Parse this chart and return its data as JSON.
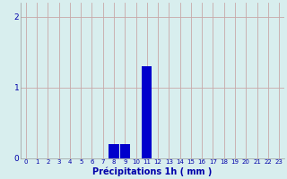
{
  "hours": [
    0,
    1,
    2,
    3,
    4,
    5,
    6,
    7,
    8,
    9,
    10,
    11,
    12,
    13,
    14,
    15,
    16,
    17,
    18,
    19,
    20,
    21,
    22,
    23
  ],
  "values": [
    0,
    0,
    0,
    0,
    0,
    0,
    0,
    0,
    0.2,
    0.2,
    0,
    1.3,
    0,
    0,
    0,
    0,
    0,
    0,
    0,
    0,
    0,
    0,
    0,
    0
  ],
  "bar_color": "#0000cc",
  "bg_color": "#d8eeee",
  "grid_color": "#c8a8a8",
  "xlabel": "Précipitations 1h ( mm )",
  "xlabel_color": "#0000aa",
  "tick_color": "#0000aa",
  "ylim": [
    0,
    2.2
  ],
  "yticks": [
    0,
    1,
    2
  ],
  "xlim": [
    -0.5,
    23.5
  ],
  "tick_fontsize": 5.0,
  "xlabel_fontsize": 7.0
}
